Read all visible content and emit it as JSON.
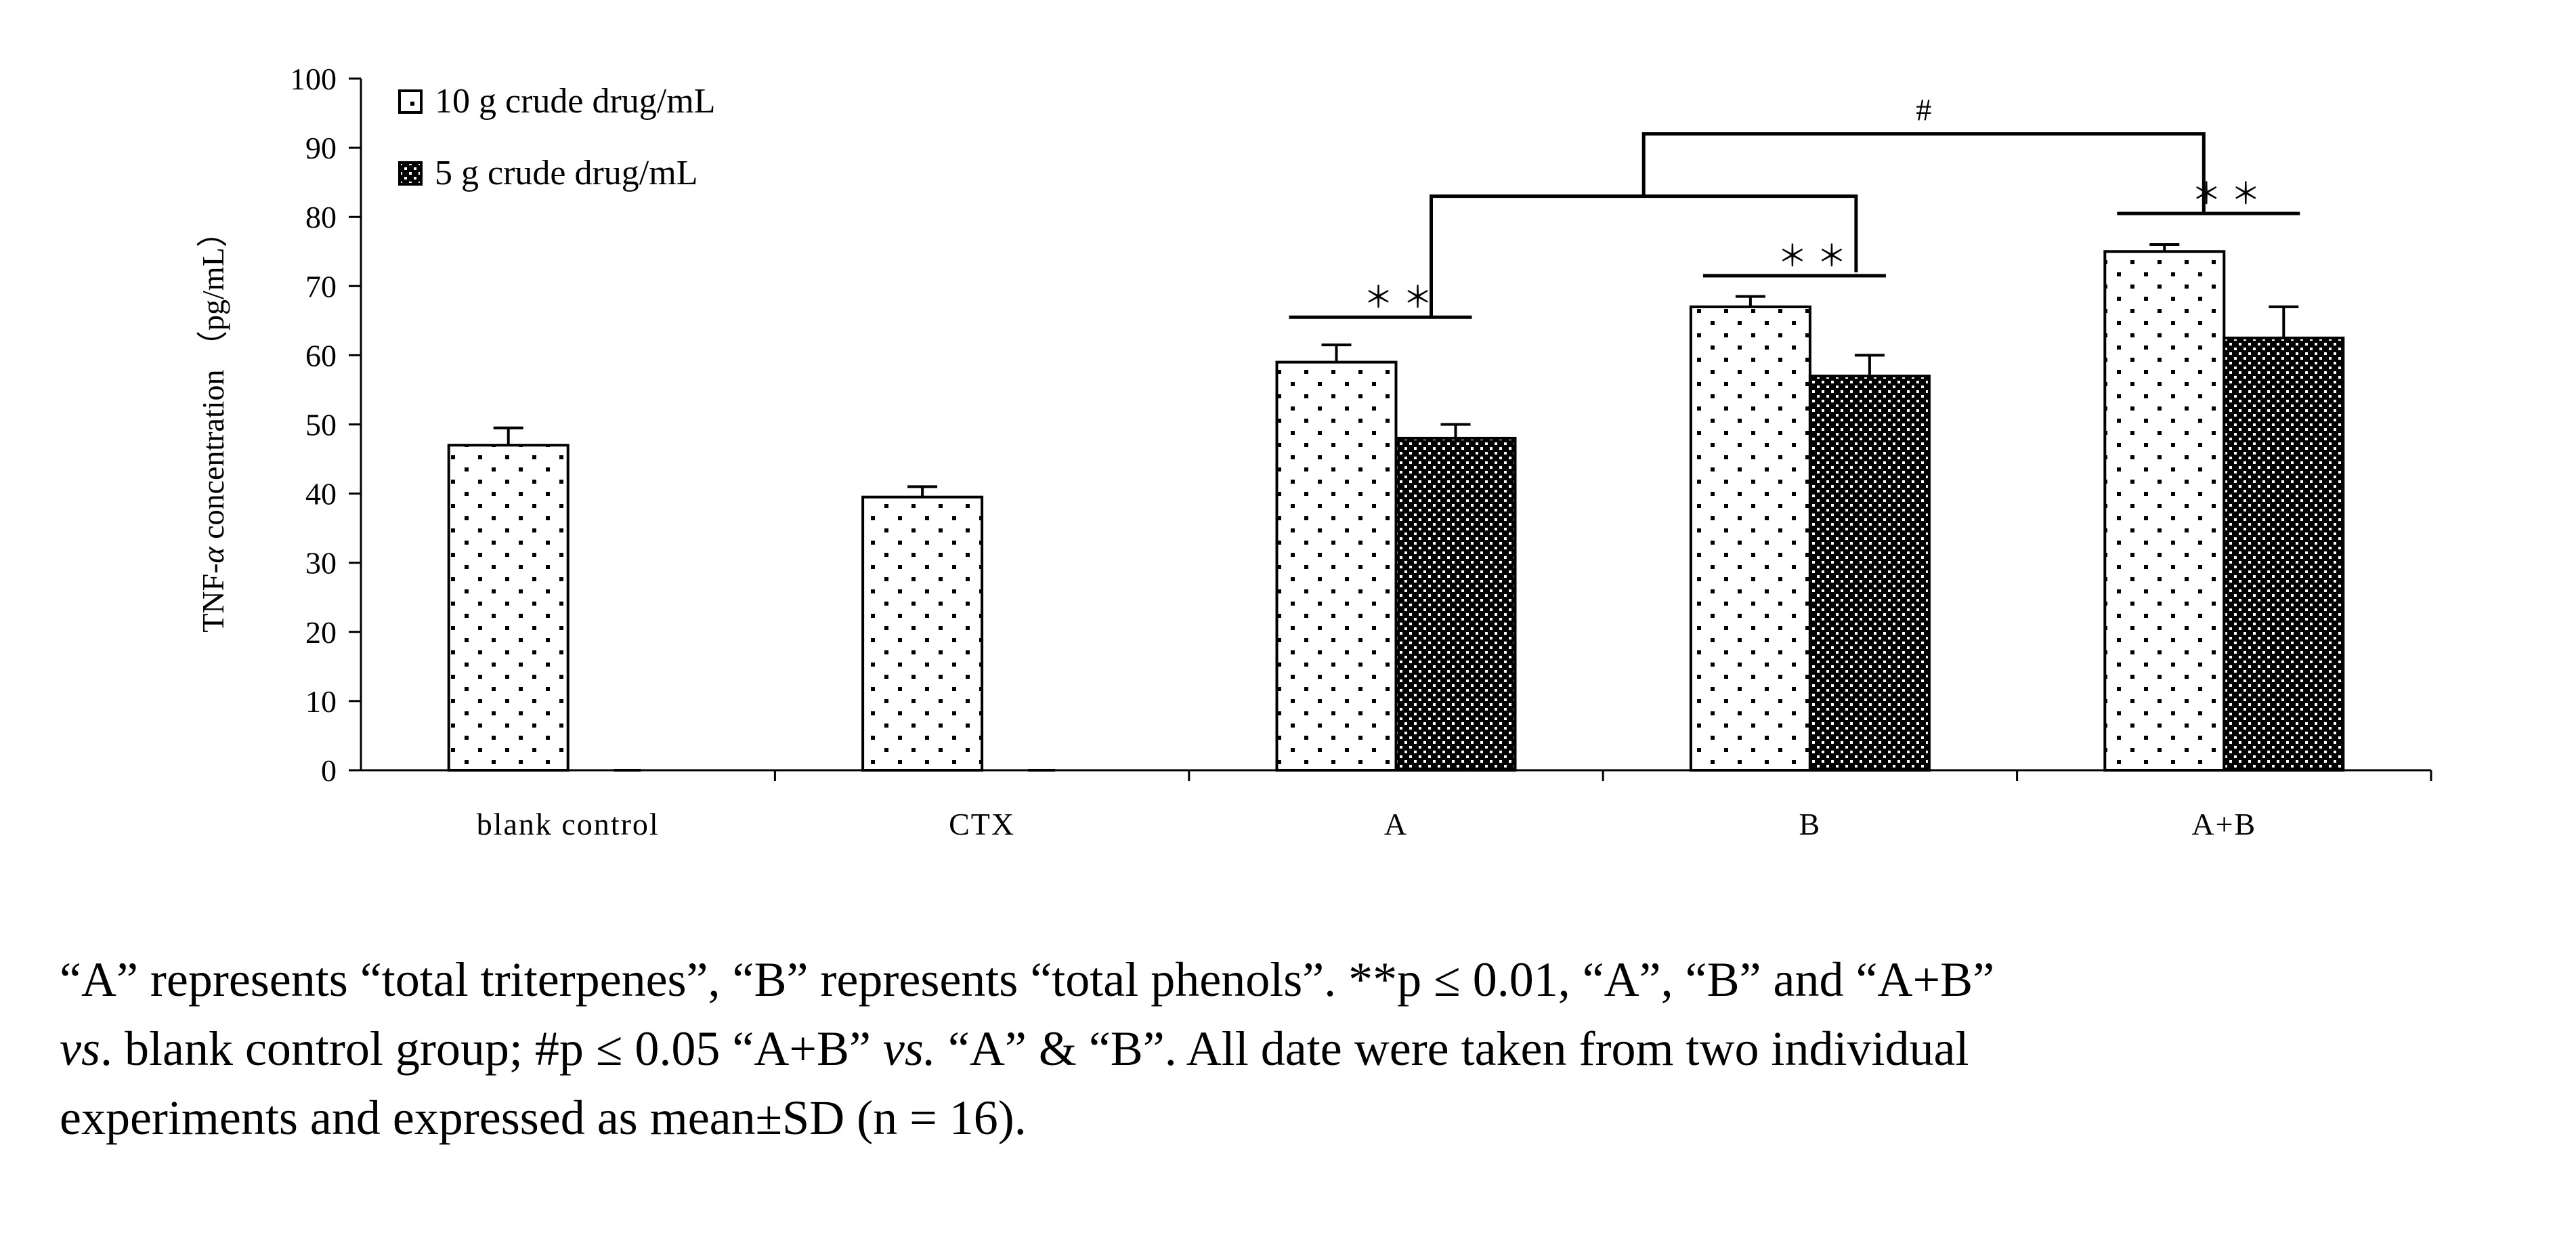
{
  "chart_data": {
    "type": "bar",
    "title": "",
    "xlabel": "",
    "ylabel": "TNF-α concentration （pg/mL）",
    "ylabel_parts": {
      "prefix": "TNF-",
      "symbol": "α",
      "suffix": " concentration （pg/mL）"
    },
    "ylim": [
      0,
      100
    ],
    "yticks": [
      0,
      10,
      20,
      30,
      40,
      50,
      60,
      70,
      80,
      90,
      100
    ],
    "grid": false,
    "legend_position": "top-left",
    "categories": [
      "blank control",
      "CTX",
      "A",
      "B",
      "A+B"
    ],
    "series": [
      {
        "name": "10 g crude drug/mL",
        "pattern": "sparse-dots",
        "values": [
          47,
          39.5,
          59,
          67,
          75
        ],
        "errors": [
          2.5,
          1.5,
          2.5,
          1.5,
          1
        ]
      },
      {
        "name": "5 g crude drug/mL",
        "pattern": "dense-dots",
        "values": [
          0,
          0,
          48,
          57,
          62.5
        ],
        "errors": [
          0,
          0,
          2,
          3,
          4.5
        ]
      }
    ],
    "annotations": [
      {
        "label": "＊＊",
        "group": "A",
        "y": 65.5
      },
      {
        "label": "＊＊",
        "group": "B",
        "y": 71.5
      },
      {
        "label": "＊＊",
        "group": "A+B",
        "y": 80.5
      },
      {
        "label": "#",
        "between": [
          "A",
          "B"
        ],
        "y_low": 83,
        "y_high": 92
      }
    ]
  },
  "caption": {
    "line1": "“A” represents “total triterpenes”, “B” represents “total phenols”. **p ≤ 0.01, “A”, “B” and “A+B”",
    "line2_a": "vs",
    "line2_b": ". blank control group; #p ≤ 0.05 “A+B” ",
    "line2_c": "vs.",
    "line2_d": " “A” & “B”. All date were taken from two individual",
    "line3": "experiments and expressed as mean±SD (n = 16)."
  }
}
